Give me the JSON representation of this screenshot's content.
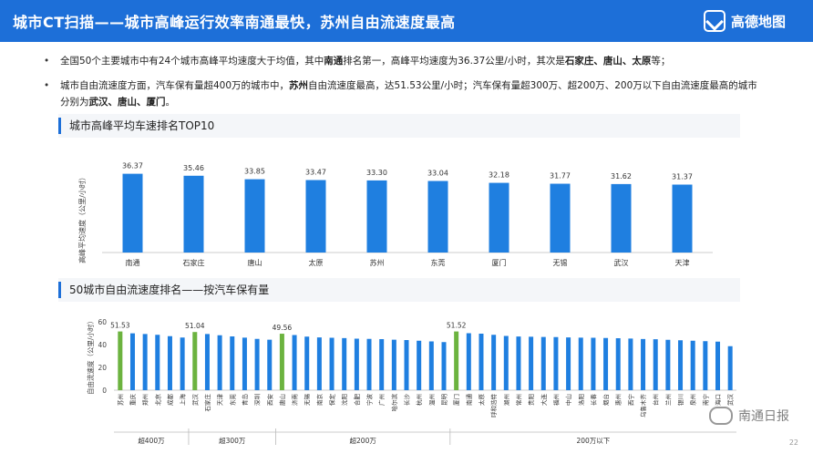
{
  "header": {
    "title": "城市CT扫描——城市高峰运行效率南通最快，苏州自由流速度最高",
    "logo_text": "高德地图",
    "logo_icon": "paper-plane-icon"
  },
  "bullets": [
    {
      "text_parts": [
        {
          "t": "全国50个主要城市中有24个城市高峰平均速度大于均值，其中",
          "b": false
        },
        {
          "t": "南通",
          "b": true
        },
        {
          "t": "排名第一，高峰平均速度为36.37公里/小时，其次是",
          "b": false
        },
        {
          "t": "石家庄、唐山、太原",
          "b": true
        },
        {
          "t": "等；",
          "b": false
        }
      ]
    },
    {
      "text_parts": [
        {
          "t": "城市自由流速度方面，汽车保有量超400万的城市中，",
          "b": false
        },
        {
          "t": "苏州",
          "b": true
        },
        {
          "t": "自由流速度最高，达51.53公里/小时；汽车保有量超300万、超200万、200万以下自由流速度最高的城市分别为",
          "b": false
        },
        {
          "t": "武汉、唐山、厦门",
          "b": true
        },
        {
          "t": "。",
          "b": false
        }
      ]
    }
  ],
  "section1_title": "城市高峰平均车速排名TOP10",
  "section2_title": "50城市自由流速度排名——按汽车保有量",
  "colors": {
    "accent": "#1d6fd8",
    "bar_blue": "#1f7fe0",
    "bar_green": "#6cb33f"
  },
  "chart_data": [
    {
      "type": "bar",
      "ylabel": "高峰平均速度（公里/小时）",
      "categories": [
        "南通",
        "石家庄",
        "唐山",
        "太原",
        "苏州",
        "东莞",
        "厦门",
        "无锡",
        "武汉",
        "天津"
      ],
      "values": [
        36.37,
        35.46,
        33.85,
        33.47,
        33.3,
        33.04,
        32.18,
        31.77,
        31.62,
        31.37
      ],
      "value_labels": [
        "36.37",
        "35.46",
        "33.85",
        "33.47",
        "33.30",
        "33.04",
        "32.18",
        "31.77",
        "31.62",
        "31.37"
      ],
      "ylim": [
        0,
        40
      ]
    },
    {
      "type": "bar",
      "ylabel": "自由流速度（公里/小时）",
      "yticks": [
        "0",
        "20",
        "40",
        "60"
      ],
      "ylim": [
        0,
        60
      ],
      "categories": [
        "苏州",
        "重庆",
        "郑州",
        "北京",
        "成都",
        "上海",
        "武汉",
        "石家庄",
        "天津",
        "东莞",
        "青岛",
        "深圳",
        "西安",
        "唐山",
        "济南",
        "无锡",
        "南京",
        "保定",
        "沈阳",
        "合肥",
        "宁波",
        "广州",
        "哈尔滨",
        "长沙",
        "杭州",
        "温州",
        "昆明",
        "厦门",
        "南通",
        "太原",
        "呼和浩特",
        "湖州",
        "常州",
        "贵阳",
        "大连",
        "福州",
        "中山",
        "洛阳",
        "长春",
        "烟台",
        "惠州",
        "西宁",
        "乌鲁木齐",
        "台州",
        "兰州",
        "银川",
        "泉州",
        "南宁",
        "海口",
        "武汉"
      ],
      "values": [
        51.53,
        49.9,
        49.3,
        48.6,
        47.4,
        46.2,
        51.04,
        49.3,
        48.2,
        47.2,
        46.1,
        45.0,
        44.3,
        49.56,
        48.4,
        47.0,
        46.3,
        46.0,
        45.7,
        45.2,
        45.0,
        44.8,
        44.3,
        44.0,
        43.4,
        42.8,
        42.2,
        51.52,
        50.0,
        49.6,
        48.6,
        47.6,
        47.1,
        46.9,
        46.7,
        46.6,
        46.3,
        46.1,
        46.0,
        45.8,
        45.6,
        45.3,
        44.9,
        44.7,
        44.2,
        43.8,
        43.4,
        43.0,
        42.6,
        38.6
      ],
      "highlight": [
        0,
        6,
        13,
        27
      ],
      "value_labels": [
        {
          "index": 0,
          "text": "51.53"
        },
        {
          "index": 6,
          "text": "51.04"
        },
        {
          "index": 13,
          "text": "49.56"
        },
        {
          "index": 27,
          "text": "51.52"
        }
      ],
      "groups": [
        {
          "label": "超400万",
          "start": 0,
          "end": 5
        },
        {
          "label": "超300万",
          "start": 6,
          "end": 12
        },
        {
          "label": "超200万",
          "start": 13,
          "end": 26
        },
        {
          "label": "200万以下",
          "start": 27,
          "end": 49
        }
      ]
    }
  ],
  "watermark": {
    "text": "南通日报",
    "icon": "chat-bubble-icon"
  },
  "page_number": "22"
}
